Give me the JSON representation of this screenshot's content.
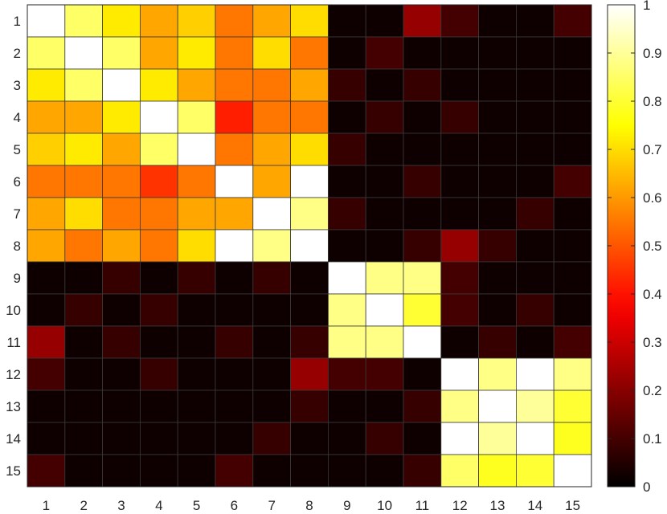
{
  "chart_data": {
    "type": "heatmap",
    "title": "",
    "xlabel": "",
    "ylabel": "",
    "x_categories": [
      "1",
      "2",
      "3",
      "4",
      "5",
      "6",
      "7",
      "8",
      "9",
      "10",
      "11",
      "12",
      "13",
      "14",
      "15"
    ],
    "y_categories": [
      "1",
      "2",
      "3",
      "4",
      "5",
      "6",
      "7",
      "8",
      "9",
      "10",
      "11",
      "12",
      "13",
      "14",
      "15"
    ],
    "values": [
      [
        1.0,
        0.85,
        0.72,
        0.62,
        0.68,
        0.55,
        0.62,
        0.7,
        0.02,
        0.02,
        0.22,
        0.1,
        0.02,
        0.02,
        0.1
      ],
      [
        0.85,
        1.0,
        0.85,
        0.62,
        0.72,
        0.55,
        0.7,
        0.55,
        0.02,
        0.1,
        0.02,
        0.02,
        0.02,
        0.02,
        0.02
      ],
      [
        0.72,
        0.85,
        1.0,
        0.72,
        0.62,
        0.55,
        0.55,
        0.62,
        0.08,
        0.02,
        0.08,
        0.02,
        0.02,
        0.02,
        0.02
      ],
      [
        0.62,
        0.62,
        0.72,
        1.0,
        0.85,
        0.42,
        0.55,
        0.55,
        0.02,
        0.08,
        0.02,
        0.08,
        0.02,
        0.02,
        0.02
      ],
      [
        0.68,
        0.72,
        0.62,
        0.85,
        1.0,
        0.55,
        0.62,
        0.7,
        0.08,
        0.02,
        0.02,
        0.02,
        0.02,
        0.02,
        0.02
      ],
      [
        0.55,
        0.55,
        0.55,
        0.45,
        0.55,
        1.0,
        0.62,
        1.0,
        0.02,
        0.02,
        0.08,
        0.02,
        0.02,
        0.02,
        0.1
      ],
      [
        0.62,
        0.7,
        0.55,
        0.55,
        0.62,
        0.62,
        1.0,
        0.88,
        0.08,
        0.02,
        0.02,
        0.02,
        0.02,
        0.08,
        0.02
      ],
      [
        0.62,
        0.55,
        0.62,
        0.55,
        0.7,
        1.0,
        0.88,
        1.0,
        0.02,
        0.02,
        0.08,
        0.22,
        0.08,
        0.02,
        0.02
      ],
      [
        0.02,
        0.02,
        0.08,
        0.02,
        0.08,
        0.02,
        0.08,
        0.02,
        1.0,
        0.88,
        0.88,
        0.1,
        0.02,
        0.02,
        0.02
      ],
      [
        0.02,
        0.08,
        0.02,
        0.08,
        0.02,
        0.02,
        0.02,
        0.02,
        0.88,
        1.0,
        0.8,
        0.1,
        0.02,
        0.08,
        0.02
      ],
      [
        0.22,
        0.02,
        0.08,
        0.02,
        0.02,
        0.08,
        0.02,
        0.08,
        0.88,
        0.88,
        1.0,
        0.02,
        0.08,
        0.02,
        0.1
      ],
      [
        0.1,
        0.02,
        0.02,
        0.08,
        0.02,
        0.02,
        0.02,
        0.22,
        0.1,
        0.1,
        0.02,
        1.0,
        0.88,
        1.0,
        0.88
      ],
      [
        0.02,
        0.02,
        0.02,
        0.02,
        0.02,
        0.02,
        0.02,
        0.08,
        0.02,
        0.02,
        0.08,
        0.88,
        1.0,
        0.9,
        0.8
      ],
      [
        0.02,
        0.02,
        0.02,
        0.02,
        0.02,
        0.02,
        0.08,
        0.02,
        0.02,
        0.08,
        0.02,
        1.0,
        0.9,
        1.0,
        0.78
      ],
      [
        0.1,
        0.02,
        0.02,
        0.02,
        0.02,
        0.1,
        0.02,
        0.02,
        0.02,
        0.02,
        0.08,
        0.85,
        0.78,
        0.8,
        1.0
      ]
    ],
    "colormap": "hot",
    "clim": [
      0,
      1
    ],
    "colorbar_ticks": [
      "0",
      "0.1",
      "0.2",
      "0.3",
      "0.4",
      "0.5",
      "0.6",
      "0.7",
      "0.8",
      "0.9",
      "1"
    ],
    "colorbar_position": "right",
    "grid": false
  }
}
